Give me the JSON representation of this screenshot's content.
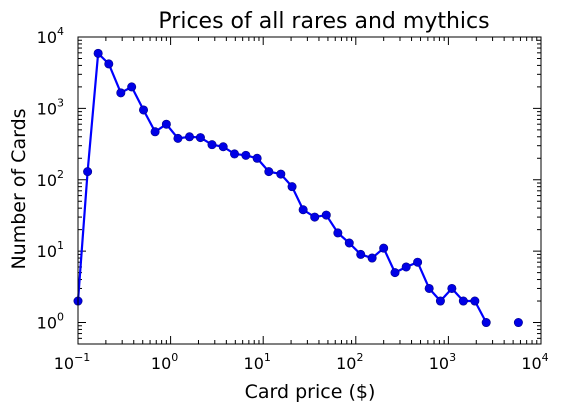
{
  "chart_data": {
    "type": "line",
    "title": "Prices of all rares and mythics",
    "xlabel": "Card price ($)",
    "ylabel": "Number of Cards",
    "xscale": "log",
    "yscale": "log",
    "xlim": [
      0.1,
      10000
    ],
    "ylim": [
      0.5,
      10000
    ],
    "grid": false,
    "legend": "none",
    "x_ticks": [
      {
        "base": "10",
        "exp": "−1",
        "value": 0.1
      },
      {
        "base": "10",
        "exp": "0",
        "value": 1
      },
      {
        "base": "10",
        "exp": "1",
        "value": 10
      },
      {
        "base": "10",
        "exp": "2",
        "value": 100
      },
      {
        "base": "10",
        "exp": "3",
        "value": 1000
      },
      {
        "base": "10",
        "exp": "4",
        "value": 10000
      }
    ],
    "y_ticks": [
      {
        "base": "10",
        "exp": "0",
        "value": 1
      },
      {
        "base": "10",
        "exp": "1",
        "value": 10
      },
      {
        "base": "10",
        "exp": "2",
        "value": 100
      },
      {
        "base": "10",
        "exp": "3",
        "value": 1000
      },
      {
        "base": "10",
        "exp": "4",
        "value": 10000
      }
    ],
    "color": "#0000ff",
    "series": [
      {
        "line_points": [
          [
            0.1,
            2
          ],
          [
            0.127,
            130
          ],
          [
            0.165,
            5900
          ],
          [
            0.215,
            4200
          ],
          [
            0.29,
            1650
          ],
          [
            0.38,
            2000
          ],
          [
            0.51,
            950
          ],
          [
            0.68,
            470
          ],
          [
            0.9,
            600
          ],
          [
            1.2,
            380
          ],
          [
            1.6,
            400
          ],
          [
            2.1,
            390
          ],
          [
            2.8,
            310
          ],
          [
            3.7,
            290
          ],
          [
            4.9,
            230
          ],
          [
            6.5,
            220
          ],
          [
            8.6,
            200
          ],
          [
            11.5,
            130
          ],
          [
            15.5,
            120
          ],
          [
            20.5,
            80
          ],
          [
            27,
            38
          ],
          [
            36,
            30
          ],
          [
            48,
            32
          ],
          [
            64,
            18
          ],
          [
            85,
            13
          ],
          [
            113,
            9
          ],
          [
            150,
            8
          ],
          [
            200,
            11
          ],
          [
            265,
            5
          ],
          [
            350,
            6
          ],
          [
            465,
            7
          ],
          [
            620,
            3
          ],
          [
            820,
            2
          ],
          [
            1090,
            3
          ],
          [
            1450,
            2
          ],
          [
            1930,
            2
          ],
          [
            2560,
            1
          ]
        ],
        "isolated_points": [
          [
            5700,
            1
          ]
        ]
      }
    ]
  }
}
